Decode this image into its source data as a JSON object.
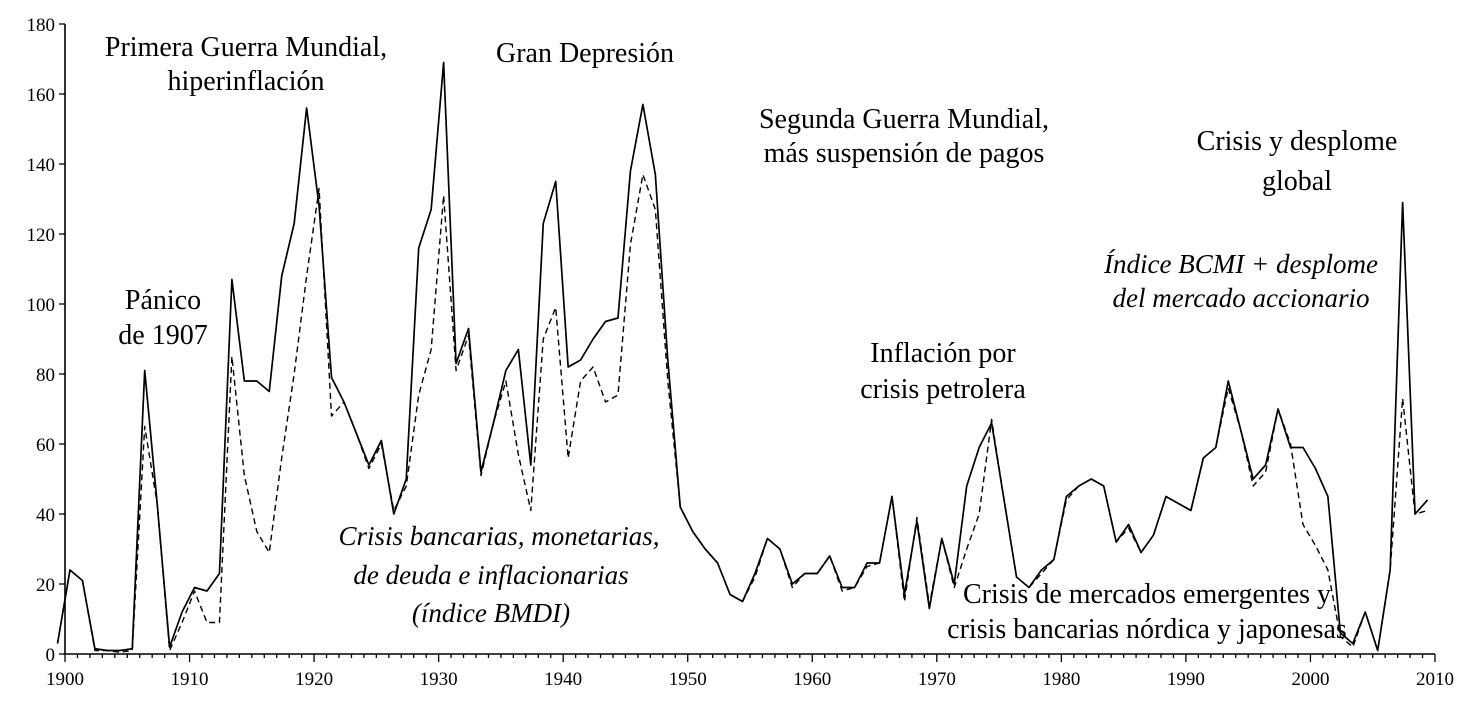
{
  "chart_data": {
    "type": "line",
    "title": "",
    "xlabel": "",
    "ylabel": "",
    "xlim": [
      1900,
      2010
    ],
    "ylim": [
      0,
      180
    ],
    "grid": false,
    "x_ticks": [
      "1900",
      "1910",
      "1920",
      "1930",
      "1940",
      "1950",
      "1960",
      "1970",
      "1980",
      "1990",
      "2000",
      "2010"
    ],
    "y_ticks": [
      "0",
      "20",
      "40",
      "60",
      "80",
      "100",
      "120",
      "140",
      "160",
      "180"
    ],
    "series": [
      {
        "name": "Índice BCMI + desplome del mercado accionario",
        "style": "solid",
        "points": [
          [
            1899.4,
            3
          ],
          [
            1900.4,
            24
          ],
          [
            1901.4,
            21
          ],
          [
            1902.4,
            1.5
          ],
          [
            1903.4,
            1
          ],
          [
            1904.4,
            1
          ],
          [
            1905.4,
            1.5
          ],
          [
            1906.4,
            81
          ],
          [
            1907.4,
            43
          ],
          [
            1908.4,
            2
          ],
          [
            1909.4,
            12
          ],
          [
            1910.4,
            19
          ],
          [
            1911.4,
            18
          ],
          [
            1912.4,
            23
          ],
          [
            1913.4,
            107
          ],
          [
            1914.4,
            78
          ],
          [
            1915.4,
            78
          ],
          [
            1916.4,
            75
          ],
          [
            1917.4,
            108
          ],
          [
            1918.4,
            123
          ],
          [
            1919.4,
            156
          ],
          [
            1920.4,
            128
          ],
          [
            1921.4,
            79
          ],
          [
            1922.4,
            72
          ],
          [
            1923.4,
            63
          ],
          [
            1924.4,
            54
          ],
          [
            1925.4,
            61
          ],
          [
            1926.4,
            40
          ],
          [
            1927.4,
            50
          ],
          [
            1928.4,
            116
          ],
          [
            1929.4,
            127
          ],
          [
            1930.4,
            169
          ],
          [
            1931.4,
            83
          ],
          [
            1932.4,
            93
          ],
          [
            1933.4,
            52
          ],
          [
            1934.4,
            66
          ],
          [
            1935.4,
            81
          ],
          [
            1936.4,
            87
          ],
          [
            1937.4,
            54
          ],
          [
            1938.4,
            123
          ],
          [
            1939.4,
            135
          ],
          [
            1940.4,
            82
          ],
          [
            1941.4,
            84
          ],
          [
            1942.4,
            90
          ],
          [
            1943.4,
            95
          ],
          [
            1944.4,
            96
          ],
          [
            1945.4,
            138
          ],
          [
            1946.4,
            157
          ],
          [
            1947.4,
            137
          ],
          [
            1948.4,
            84
          ],
          [
            1949.4,
            42
          ],
          [
            1950.4,
            35
          ],
          [
            1951.4,
            30
          ],
          [
            1952.4,
            26
          ],
          [
            1953.4,
            17
          ],
          [
            1954.4,
            15
          ],
          [
            1955.4,
            23
          ],
          [
            1956.4,
            33
          ],
          [
            1957.4,
            30
          ],
          [
            1958.4,
            20
          ],
          [
            1959.4,
            23
          ],
          [
            1960.4,
            23
          ],
          [
            1961.4,
            28
          ],
          [
            1962.4,
            19
          ],
          [
            1963.4,
            19
          ],
          [
            1964.4,
            26
          ],
          [
            1965.4,
            26
          ],
          [
            1966.4,
            45
          ],
          [
            1967.4,
            17
          ],
          [
            1968.4,
            38
          ],
          [
            1969.4,
            13
          ],
          [
            1970.4,
            33
          ],
          [
            1971.4,
            20
          ],
          [
            1972.4,
            48
          ],
          [
            1973.4,
            59
          ],
          [
            1974.4,
            66
          ],
          [
            1975.4,
            44
          ],
          [
            1976.4,
            22
          ],
          [
            1977.4,
            19
          ],
          [
            1978.4,
            24
          ],
          [
            1979.4,
            27
          ],
          [
            1980.4,
            45
          ],
          [
            1981.4,
            48
          ],
          [
            1982.4,
            50
          ],
          [
            1983.4,
            48
          ],
          [
            1984.4,
            32
          ],
          [
            1985.4,
            37
          ],
          [
            1986.4,
            29
          ],
          [
            1987.4,
            34
          ],
          [
            1988.4,
            45
          ],
          [
            1989.4,
            43
          ],
          [
            1990.4,
            41
          ],
          [
            1991.4,
            56
          ],
          [
            1992.4,
            59
          ],
          [
            1993.4,
            78
          ],
          [
            1994.4,
            64
          ],
          [
            1995.4,
            50
          ],
          [
            1996.4,
            54
          ],
          [
            1997.4,
            70
          ],
          [
            1998.4,
            59
          ],
          [
            1999.4,
            59
          ],
          [
            2000.4,
            53
          ],
          [
            2001.4,
            45
          ],
          [
            2002.4,
            6
          ],
          [
            2003.4,
            3
          ],
          [
            2004.4,
            12
          ],
          [
            2005.4,
            1
          ],
          [
            2006.4,
            24
          ],
          [
            2007.4,
            129
          ],
          [
            2008.4,
            40
          ],
          [
            2009.4,
            44
          ]
        ]
      },
      {
        "name": "Crisis bancarias, monetarias, de deuda e inflacionarias (índice BMDI)",
        "style": "dashed",
        "points": [
          [
            1899.4,
            3
          ],
          [
            1900.4,
            24
          ],
          [
            1901.4,
            21
          ],
          [
            1902.4,
            1
          ],
          [
            1903.4,
            1
          ],
          [
            1904.4,
            0.5
          ],
          [
            1905.4,
            1
          ],
          [
            1906.4,
            65
          ],
          [
            1907.4,
            43
          ],
          [
            1908.4,
            1
          ],
          [
            1909.4,
            9
          ],
          [
            1910.4,
            18
          ],
          [
            1911.4,
            9
          ],
          [
            1912.4,
            9
          ],
          [
            1913.4,
            85
          ],
          [
            1914.4,
            51
          ],
          [
            1915.4,
            35
          ],
          [
            1916.4,
            29
          ],
          [
            1917.4,
            56
          ],
          [
            1918.4,
            80
          ],
          [
            1919.4,
            108
          ],
          [
            1920.4,
            133
          ],
          [
            1921.4,
            68
          ],
          [
            1922.4,
            72
          ],
          [
            1923.4,
            63
          ],
          [
            1924.4,
            53
          ],
          [
            1925.4,
            60
          ],
          [
            1926.4,
            41
          ],
          [
            1927.4,
            48
          ],
          [
            1928.4,
            74
          ],
          [
            1929.4,
            87
          ],
          [
            1930.4,
            131
          ],
          [
            1931.4,
            81
          ],
          [
            1932.4,
            91
          ],
          [
            1933.4,
            51
          ],
          [
            1934.4,
            66
          ],
          [
            1935.4,
            78
          ],
          [
            1936.4,
            57
          ],
          [
            1937.4,
            41
          ],
          [
            1938.4,
            90
          ],
          [
            1939.4,
            99
          ],
          [
            1940.4,
            56
          ],
          [
            1941.4,
            78
          ],
          [
            1942.4,
            82
          ],
          [
            1943.4,
            72
          ],
          [
            1944.4,
            74
          ],
          [
            1945.4,
            117
          ],
          [
            1946.4,
            137
          ],
          [
            1947.4,
            127
          ],
          [
            1948.4,
            78
          ],
          [
            1949.4,
            42
          ],
          [
            1950.4,
            35
          ],
          [
            1951.4,
            30
          ],
          [
            1952.4,
            26
          ],
          [
            1953.4,
            17
          ],
          [
            1954.4,
            15
          ],
          [
            1955.4,
            22
          ],
          [
            1956.4,
            33
          ],
          [
            1957.4,
            30
          ],
          [
            1958.4,
            19
          ],
          [
            1959.4,
            23
          ],
          [
            1960.4,
            23
          ],
          [
            1961.4,
            28
          ],
          [
            1962.4,
            18
          ],
          [
            1963.4,
            19
          ],
          [
            1964.4,
            25
          ],
          [
            1965.4,
            26
          ],
          [
            1966.4,
            45
          ],
          [
            1967.4,
            15
          ],
          [
            1968.4,
            39
          ],
          [
            1969.4,
            14
          ],
          [
            1970.4,
            33
          ],
          [
            1971.4,
            19
          ],
          [
            1972.4,
            30
          ],
          [
            1973.4,
            40
          ],
          [
            1974.4,
            67
          ],
          [
            1975.4,
            44
          ],
          [
            1976.4,
            22
          ],
          [
            1977.4,
            19
          ],
          [
            1978.4,
            23
          ],
          [
            1979.4,
            27
          ],
          [
            1980.4,
            44
          ],
          [
            1981.4,
            48
          ],
          [
            1982.4,
            50
          ],
          [
            1983.4,
            48
          ],
          [
            1984.4,
            32
          ],
          [
            1985.4,
            36
          ],
          [
            1986.4,
            29
          ],
          [
            1987.4,
            34
          ],
          [
            1988.4,
            45
          ],
          [
            1989.4,
            43
          ],
          [
            1990.4,
            41
          ],
          [
            1991.4,
            56
          ],
          [
            1992.4,
            59
          ],
          [
            1993.4,
            76
          ],
          [
            1994.4,
            64
          ],
          [
            1995.4,
            48
          ],
          [
            1996.4,
            52
          ],
          [
            1997.4,
            70
          ],
          [
            1998.4,
            60
          ],
          [
            1999.4,
            37
          ],
          [
            2000.4,
            31
          ],
          [
            2001.4,
            24
          ],
          [
            2002.4,
            5
          ],
          [
            2003.4,
            2
          ],
          [
            2004.4,
            12
          ],
          [
            2005.4,
            1
          ],
          [
            2006.4,
            24
          ],
          [
            2007.4,
            73
          ],
          [
            2008.4,
            40
          ],
          [
            2009.4,
            41
          ]
        ]
      }
    ],
    "annotations": {
      "ww1_line1": "Primera Guerra Mundial,",
      "ww1_line2": "hiperinflación",
      "great_depression": "Gran Depresión",
      "ww2_line1": "Segunda Guerra Mundial,",
      "ww2_line2": "más suspensión de pagos",
      "global_line1": "Crisis y desplome",
      "global_line2": "global",
      "bcmi_line1": "Índice BCMI + desplome",
      "bcmi_line2": "del mercado accionario",
      "panic_line1": "Pánico",
      "panic_line2": "de 1907",
      "oil_line1": "Inflación por",
      "oil_line2": "crisis petrolera",
      "bmdi_line1": "Crisis bancarias, monetarias,",
      "bmdi_line2": "de deuda e inflacionarias",
      "bmdi_line3": "(índice BMDI)",
      "em_line1": "Crisis de mercados emergentes y",
      "em_line2": "crisis bancarias nórdica y japonesas"
    }
  }
}
